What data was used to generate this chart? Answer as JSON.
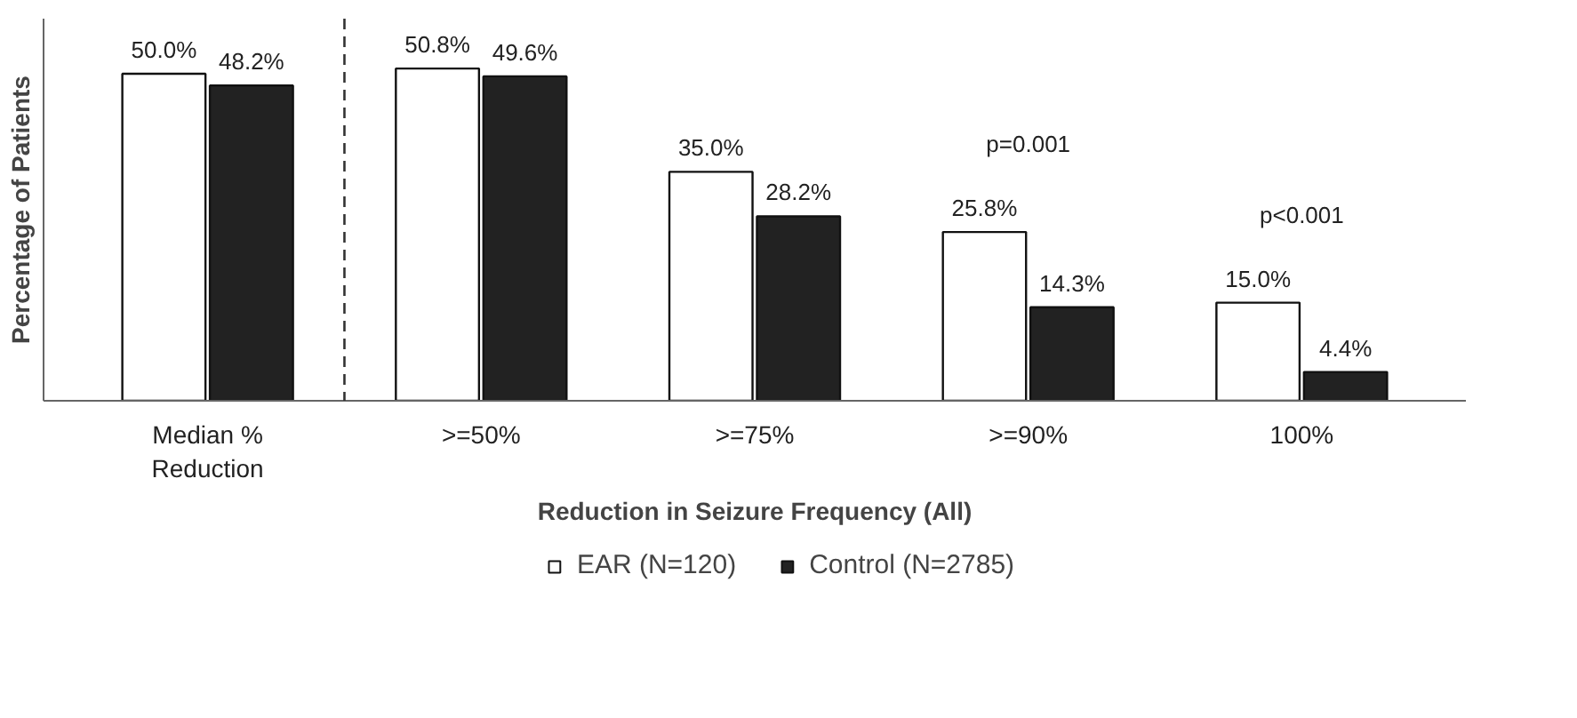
{
  "chart_data": {
    "type": "bar",
    "xlabel": "Reduction in Seizure Frequency (All)",
    "ylabel": "Percentage of Patients",
    "categories": [
      "Median %\nReduction",
      ">=50%",
      ">=75%",
      ">=90%",
      "100%"
    ],
    "series": [
      {
        "name": "EAR (N=120)",
        "color": "#ffffff",
        "values": [
          50.0,
          50.8,
          35.0,
          25.8,
          15.0
        ],
        "value_labels": [
          "50.0%",
          "50.8%",
          "35.0%",
          "25.8%",
          "15.0%"
        ]
      },
      {
        "name": "Control (N=2785)",
        "color": "#222222",
        "values": [
          48.2,
          49.6,
          28.2,
          14.3,
          4.4
        ],
        "value_labels": [
          "48.2%",
          "49.6%",
          "28.2%",
          "14.3%",
          "4.4%"
        ]
      }
    ],
    "annotations": [
      "p=0.001",
      "p<0.001"
    ],
    "legend": "bottom",
    "tick_labels": "x"
  }
}
